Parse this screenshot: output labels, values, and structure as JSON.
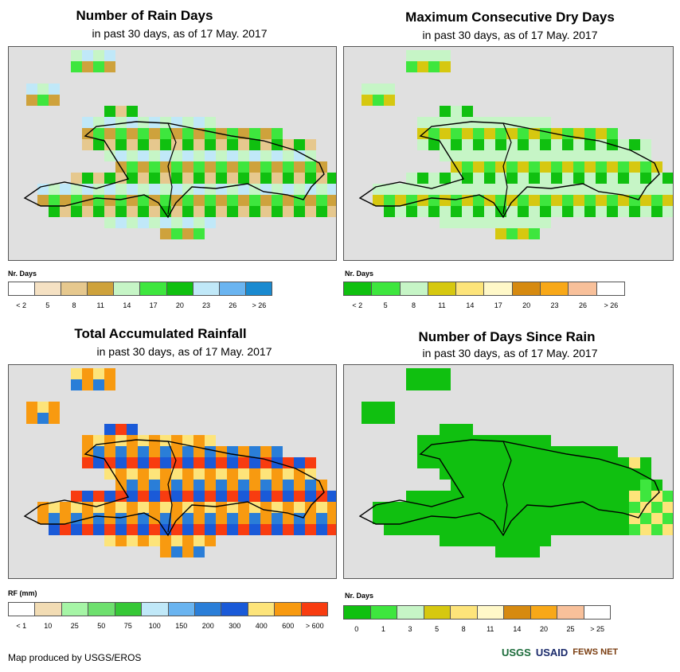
{
  "panels": [
    {
      "id": "rain-days",
      "title": "Number of Rain Days",
      "subtitle": "in past 30 days, as of 17 May. 2017",
      "legend_title": "Nr. Days",
      "legend_colors": [
        "#ffffff",
        "#f5e1c3",
        "#e6c88e",
        "#cea23c",
        "#c6f5c6",
        "#3ee63e",
        "#10c010",
        "#c0e8f8",
        "#6ab4f0",
        "#1a8ad0"
      ],
      "legend_labels": [
        "< 2",
        "5",
        "8",
        "11",
        "14",
        "17",
        "20",
        "23",
        "26",
        "> 26"
      ]
    },
    {
      "id": "max-dry-days",
      "title": "Maximum Consecutive Dry Days",
      "subtitle": "in past 30 days, as of 17 May. 2017",
      "legend_title": "Nr. Days",
      "legend_colors": [
        "#10c010",
        "#3ee63e",
        "#c6f5c6",
        "#d6c810",
        "#fde47a",
        "#fff8c8",
        "#d68a10",
        "#f8a818",
        "#f8c09a",
        "#ffffff"
      ],
      "legend_labels": [
        "< 2",
        "5",
        "8",
        "11",
        "14",
        "17",
        "20",
        "23",
        "26",
        "> 26"
      ]
    },
    {
      "id": "total-rainfall",
      "title": "Total Accumulated Rainfall",
      "subtitle": "in past 30 days, as of 17 May. 2017",
      "legend_title": "RF (mm)",
      "legend_colors": [
        "#ffffff",
        "#f2dcb4",
        "#a6f5a6",
        "#6ee06e",
        "#36c836",
        "#c0e8f8",
        "#6ab4f0",
        "#2a7ed8",
        "#1a5ad8",
        "#fde47a",
        "#f89a10",
        "#f83c10"
      ],
      "legend_labels": [
        "< 1",
        "10",
        "25",
        "50",
        "75",
        "100",
        "150",
        "200",
        "300",
        "400",
        "600",
        "> 600"
      ]
    },
    {
      "id": "days-since-rain",
      "title": "Number of Days Since Rain",
      "subtitle": "in past 30 days, as of 17 May. 2017",
      "legend_title": "Nr. Days",
      "legend_colors": [
        "#10c010",
        "#3ee63e",
        "#c6f5c6",
        "#d6c810",
        "#fde47a",
        "#fff8c8",
        "#d68a10",
        "#f8a818",
        "#f8c09a",
        "#ffffff"
      ],
      "legend_labels": [
        "0",
        "1",
        "3",
        "5",
        "8",
        "11",
        "14",
        "20",
        "25",
        "> 25"
      ]
    }
  ],
  "footer": "Map produced by USGS/EROS",
  "logos": {
    "usgs": "USGS",
    "usaid": "USAID",
    "fews": "FEWS NET"
  }
}
